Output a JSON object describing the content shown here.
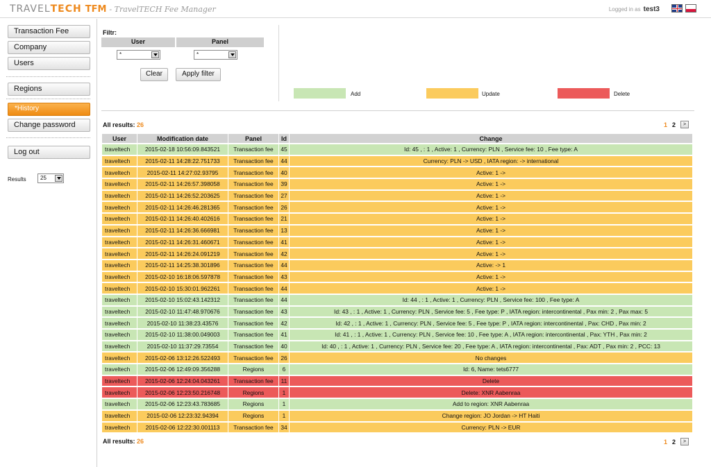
{
  "header": {
    "brand_travel": "TRAVEL",
    "brand_tech": "TECH",
    "brand_tfm": "TFM",
    "subtitle": "- TravelTECH Fee Manager",
    "logged_in_label": "Logged in as",
    "username": "test3"
  },
  "sidebar": {
    "transaction_fee": "Transaction Fee",
    "company": "Company",
    "users": "Users",
    "regions": "Regions",
    "history": "*History",
    "change_password": "Change password",
    "log_out": "Log out",
    "results_label": "Results",
    "results_value": "25"
  },
  "filter": {
    "label": "Filtr:",
    "user_header": "User",
    "panel_header": "Panel",
    "user_value": "*",
    "panel_value": "*",
    "clear": "Clear",
    "apply": "Apply filter"
  },
  "legend": {
    "add": "Add",
    "update": "Update",
    "delete": "Delete",
    "add_color": "#c8e6b4",
    "update_color": "#fbcb5d",
    "delete_color": "#ec5a5a"
  },
  "results": {
    "label": "All results:",
    "count": "26",
    "page1": "1",
    "page2": "2",
    "next": ">"
  },
  "table": {
    "headers": [
      "User",
      "Modification date",
      "Panel",
      "Id",
      "Change"
    ],
    "rows": [
      {
        "type": "add",
        "user": "traveltech",
        "date": "2015-02-18 10:56:09.843521",
        "panel": "Transaction fee",
        "id": "45",
        "change": "Id: 45 , : 1 , Active: 1 , Currency: PLN , Service fee: 10 , Fee type: A"
      },
      {
        "type": "update",
        "user": "traveltech",
        "date": "2015-02-11 14:28:22.751733",
        "panel": "Transaction fee",
        "id": "44",
        "change": "Currency: PLN -> USD , IATA region: -> international"
      },
      {
        "type": "update",
        "user": "traveltech",
        "date": "2015-02-11 14:27:02.93795",
        "panel": "Transaction fee",
        "id": "40",
        "change": "Active: 1 ->"
      },
      {
        "type": "update",
        "user": "traveltech",
        "date": "2015-02-11 14:26:57.398058",
        "panel": "Transaction fee",
        "id": "39",
        "change": "Active: 1 ->"
      },
      {
        "type": "update",
        "user": "traveltech",
        "date": "2015-02-11 14:26:52.203625",
        "panel": "Transaction fee",
        "id": "27",
        "change": "Active: 1 ->"
      },
      {
        "type": "update",
        "user": "traveltech",
        "date": "2015-02-11 14:26:46.281365",
        "panel": "Transaction fee",
        "id": "26",
        "change": "Active: 1 ->"
      },
      {
        "type": "update",
        "user": "traveltech",
        "date": "2015-02-11 14:26:40.402616",
        "panel": "Transaction fee",
        "id": "21",
        "change": "Active: 1 ->"
      },
      {
        "type": "update",
        "user": "traveltech",
        "date": "2015-02-11 14:26:36.666981",
        "panel": "Transaction fee",
        "id": "13",
        "change": "Active: 1 ->"
      },
      {
        "type": "update",
        "user": "traveltech",
        "date": "2015-02-11 14:26:31.460671",
        "panel": "Transaction fee",
        "id": "41",
        "change": "Active: 1 ->"
      },
      {
        "type": "update",
        "user": "traveltech",
        "date": "2015-02-11 14:26:24.091219",
        "panel": "Transaction fee",
        "id": "42",
        "change": "Active: 1 ->"
      },
      {
        "type": "update",
        "user": "traveltech",
        "date": "2015-02-11 14:25:38.301896",
        "panel": "Transaction fee",
        "id": "44",
        "change": "Active: -> 1"
      },
      {
        "type": "update",
        "user": "traveltech",
        "date": "2015-02-10 16:18:06.597878",
        "panel": "Transaction fee",
        "id": "43",
        "change": "Active: 1 ->"
      },
      {
        "type": "update",
        "user": "traveltech",
        "date": "2015-02-10 15:30:01.962261",
        "panel": "Transaction fee",
        "id": "44",
        "change": "Active: 1 ->"
      },
      {
        "type": "add",
        "user": "traveltech",
        "date": "2015-02-10 15:02:43.142312",
        "panel": "Transaction fee",
        "id": "44",
        "change": "Id: 44 , : 1 , Active: 1 , Currency: PLN , Service fee: 100 , Fee type: A"
      },
      {
        "type": "add",
        "user": "traveltech",
        "date": "2015-02-10 11:47:48.970676",
        "panel": "Transaction fee",
        "id": "43",
        "change": "Id: 43 , : 1 , Active: 1 , Currency: PLN , Service fee: 5 , Fee type: P , IATA region: intercontinental , Pax min: 2 , Pax max: 5"
      },
      {
        "type": "add",
        "user": "traveltech",
        "date": "2015-02-10 11:38:23.43576",
        "panel": "Transaction fee",
        "id": "42",
        "change": "Id: 42 , : 1 , Active: 1 , Currency: PLN , Service fee: 5 , Fee type: P , IATA region: intercontinental , Pax: CHD , Pax min: 2"
      },
      {
        "type": "add",
        "user": "traveltech",
        "date": "2015-02-10 11:38:00.049003",
        "panel": "Transaction fee",
        "id": "41",
        "change": "Id: 41 , : 1 , Active: 1 , Currency: PLN , Service fee: 10 , Fee type: A , IATA region: intercontinental , Pax: YTH , Pax min: 2"
      },
      {
        "type": "add",
        "user": "traveltech",
        "date": "2015-02-10 11:37:29.73554",
        "panel": "Transaction fee",
        "id": "40",
        "change": "Id: 40 , : 1 , Active: 1 , Currency: PLN , Service fee: 20 , Fee type: A , IATA region: intercontinental , Pax: ADT , Pax min: 2 , PCC: 13"
      },
      {
        "type": "update",
        "user": "traveltech",
        "date": "2015-02-06 13:12:26.522493",
        "panel": "Transaction fee",
        "id": "26",
        "change": "No changes"
      },
      {
        "type": "add",
        "user": "traveltech",
        "date": "2015-02-06 12:49:09.356288",
        "panel": "Regions",
        "id": "6",
        "change": "Id: 6, Name: tets6777"
      },
      {
        "type": "delete",
        "user": "traveltech",
        "date": "2015-02-06 12:24:04.043261",
        "panel": "Transaction fee",
        "id": "11",
        "change": "Delete"
      },
      {
        "type": "delete",
        "user": "traveltech",
        "date": "2015-02-06 12:23:50.216748",
        "panel": "Regions",
        "id": "1",
        "change": "Delete: XNR Aabenraa"
      },
      {
        "type": "add",
        "user": "traveltech",
        "date": "2015-02-06 12:23:43.783685",
        "panel": "Regions",
        "id": "1",
        "change": "Add to region: XNR Aabenraa"
      },
      {
        "type": "update",
        "user": "traveltech",
        "date": "2015-02-06 12:23:32.94394",
        "panel": "Regions",
        "id": "1",
        "change": "Change region: JO Jordan -> HT Haiti"
      },
      {
        "type": "update",
        "user": "traveltech",
        "date": "2015-02-06 12:22:30.001113",
        "panel": "Transaction fee",
        "id": "34",
        "change": "Currency: PLN -> EUR"
      }
    ]
  }
}
